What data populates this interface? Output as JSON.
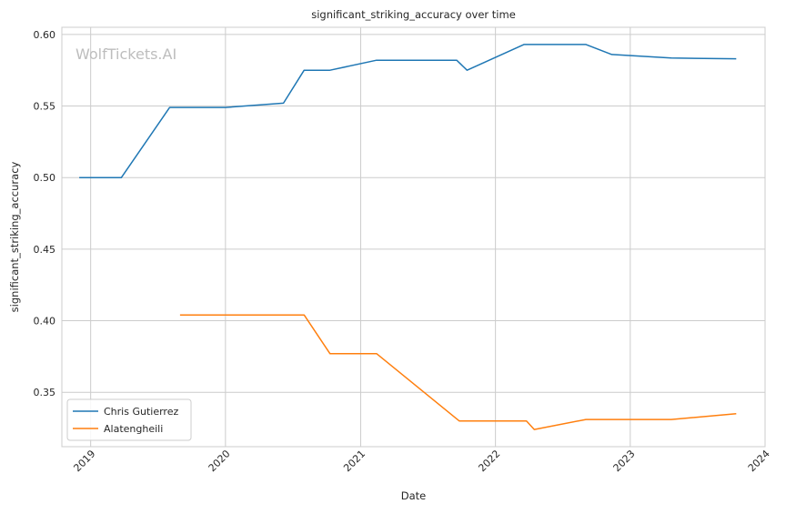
{
  "chart_data": {
    "type": "line",
    "title": "significant_striking_accuracy over time",
    "xlabel": "Date",
    "ylabel": "significant_striking_accuracy",
    "watermark": "WolfTickets.AI",
    "x_axis_type": "date",
    "xlim": [
      "2018-10-15",
      "2024-01-01"
    ],
    "ylim": [
      0.312,
      0.605
    ],
    "x_ticks": [
      {
        "date": "2019-01-01",
        "label": "2019"
      },
      {
        "date": "2020-01-01",
        "label": "2020"
      },
      {
        "date": "2021-01-01",
        "label": "2021"
      },
      {
        "date": "2022-01-01",
        "label": "2022"
      },
      {
        "date": "2023-01-01",
        "label": "2023"
      },
      {
        "date": "2024-01-01",
        "label": "2024"
      }
    ],
    "y_ticks": [
      {
        "value": 0.35,
        "label": "0.35"
      },
      {
        "value": 0.4,
        "label": "0.40"
      },
      {
        "value": 0.45,
        "label": "0.45"
      },
      {
        "value": 0.5,
        "label": "0.50"
      },
      {
        "value": 0.55,
        "label": "0.55"
      },
      {
        "value": 0.6,
        "label": "0.60"
      }
    ],
    "grid": true,
    "legend_position": "lower-left",
    "series": [
      {
        "name": "Chris Gutierrez",
        "color": "#1f77b4",
        "points": [
          {
            "x": "2018-12-01",
            "y": 0.5
          },
          {
            "x": "2019-03-25",
            "y": 0.5
          },
          {
            "x": "2019-08-03",
            "y": 0.549
          },
          {
            "x": "2020-01-01",
            "y": 0.549
          },
          {
            "x": "2020-06-06",
            "y": 0.552
          },
          {
            "x": "2020-08-01",
            "y": 0.575
          },
          {
            "x": "2020-10-10",
            "y": 0.575
          },
          {
            "x": "2021-02-13",
            "y": 0.582
          },
          {
            "x": "2021-09-18",
            "y": 0.582
          },
          {
            "x": "2021-10-16",
            "y": 0.575
          },
          {
            "x": "2022-03-19",
            "y": 0.593
          },
          {
            "x": "2022-09-03",
            "y": 0.593
          },
          {
            "x": "2022-11-12",
            "y": 0.586
          },
          {
            "x": "2023-04-22",
            "y": 0.5835
          },
          {
            "x": "2023-10-15",
            "y": 0.583
          }
        ]
      },
      {
        "name": "Alatengheili",
        "color": "#ff7f0e",
        "points": [
          {
            "x": "2019-08-31",
            "y": 0.404
          },
          {
            "x": "2020-08-01",
            "y": 0.404
          },
          {
            "x": "2020-10-10",
            "y": 0.377
          },
          {
            "x": "2021-02-13",
            "y": 0.377
          },
          {
            "x": "2021-09-25",
            "y": 0.33
          },
          {
            "x": "2022-03-26",
            "y": 0.33
          },
          {
            "x": "2022-04-16",
            "y": 0.324
          },
          {
            "x": "2022-09-03",
            "y": 0.331
          },
          {
            "x": "2023-04-22",
            "y": 0.331
          },
          {
            "x": "2023-10-15",
            "y": 0.335
          }
        ]
      }
    ]
  }
}
